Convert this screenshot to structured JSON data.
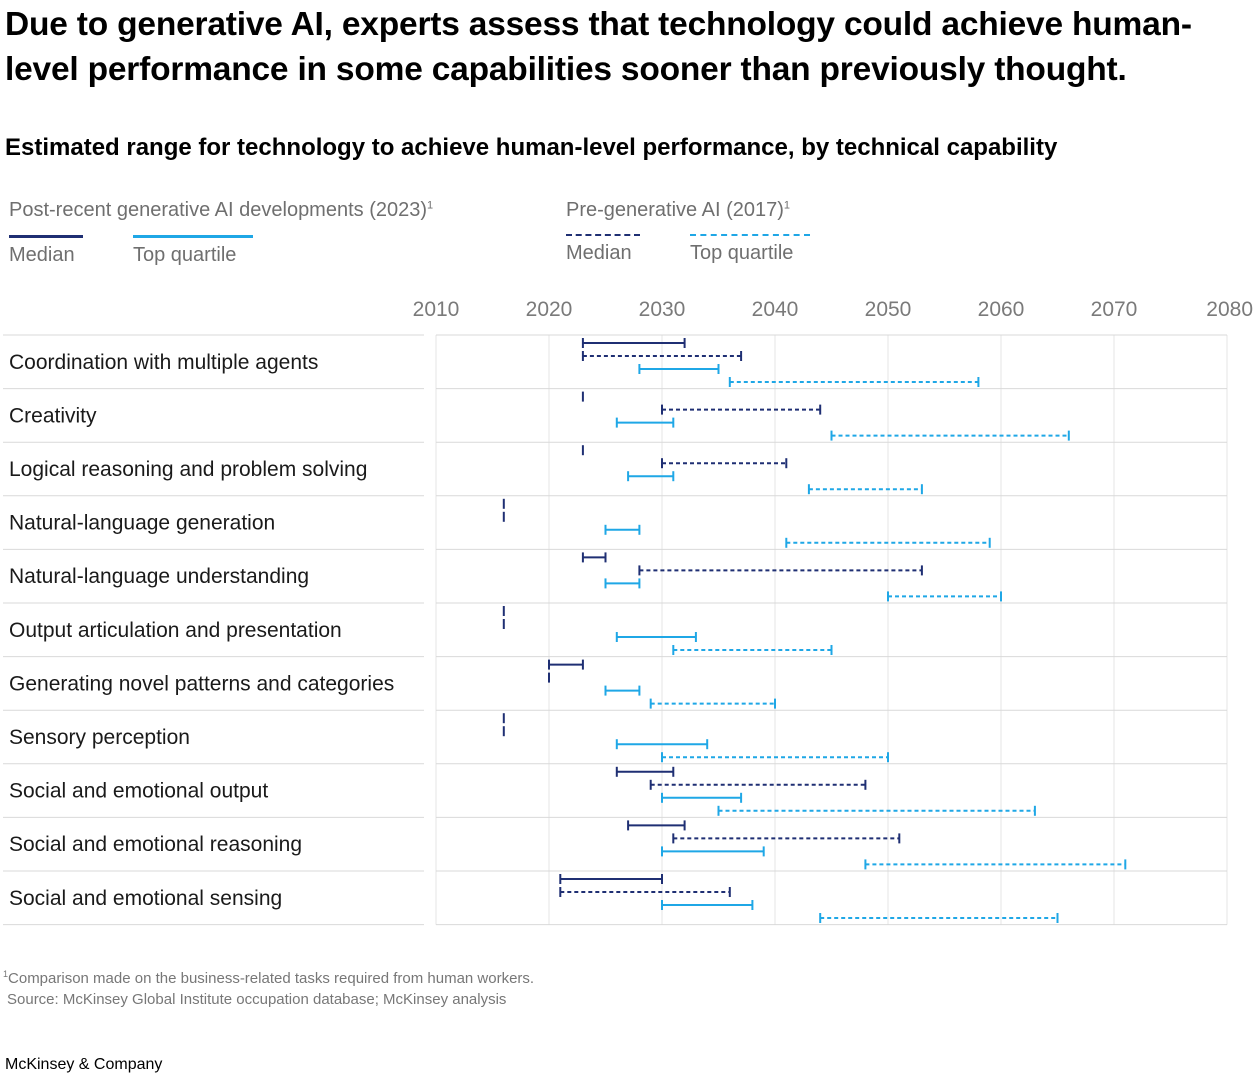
{
  "title": "Due to generative AI, experts assess that technology could achieve human-level performance in some capabilities sooner than previously thought.",
  "subtitle": "Estimated range for technology to achieve human-level performance, by technical capability",
  "legend": {
    "group_post": "Post-recent generative AI developments (2023)",
    "group_pre": "Pre-generative AI (2017)",
    "footnote_marker": "1",
    "median": "Median",
    "top_quartile": "Top quartile"
  },
  "colors": {
    "median": "#1f2f73",
    "top_quartile": "#1fa7e6",
    "gridline": "#e4e4e4",
    "row_divider": "#d9d9d9"
  },
  "footnote": {
    "marker": "1",
    "note": "Comparison made on the business-related tasks required from human workers.",
    "source": "Source: McKinsey Global Institute occupation database; McKinsey analysis"
  },
  "brand": "McKinsey & Company",
  "chart_data": {
    "type": "range",
    "title": "Estimated range for technology to achieve human-level performance, by technical capability",
    "xlim": [
      2010,
      2080
    ],
    "xticks": [
      "2010",
      "2020",
      "2030",
      "2040",
      "2050",
      "2060",
      "2070",
      "2080"
    ],
    "grid": true,
    "legend_position": "top",
    "series": [
      {
        "name": "Median",
        "group": "Post-recent generative AI developments (2023)",
        "style": "solid",
        "color": "#1f2f73"
      },
      {
        "name": "Median",
        "group": "Pre-generative AI (2017)",
        "style": "dashed",
        "color": "#1f2f73"
      },
      {
        "name": "Top quartile",
        "group": "Post-recent generative AI developments (2023)",
        "style": "solid",
        "color": "#1fa7e6"
      },
      {
        "name": "Top quartile",
        "group": "Pre-generative AI (2017)",
        "style": "dashed",
        "color": "#1fa7e6"
      }
    ],
    "categories": [
      {
        "label": "Coordination with multiple agents",
        "ranges": [
          [
            2023,
            2032
          ],
          [
            2023,
            2037
          ],
          [
            2028,
            2035
          ],
          [
            2036,
            2058
          ]
        ]
      },
      {
        "label": "Creativity",
        "ranges": [
          [
            2023,
            2023
          ],
          [
            2030,
            2044
          ],
          [
            2026,
            2031
          ],
          [
            2045,
            2066
          ]
        ]
      },
      {
        "label": "Logical reasoning and problem solving",
        "ranges": [
          [
            2023,
            2023
          ],
          [
            2030,
            2041
          ],
          [
            2027,
            2031
          ],
          [
            2043,
            2053
          ]
        ]
      },
      {
        "label": "Natural-language generation",
        "ranges": [
          [
            2016,
            2016
          ],
          [
            2016,
            2016
          ],
          [
            2025,
            2028
          ],
          [
            2041,
            2059
          ]
        ]
      },
      {
        "label": "Natural-language understanding",
        "ranges": [
          [
            2023,
            2025
          ],
          [
            2028,
            2053
          ],
          [
            2025,
            2028
          ],
          [
            2050,
            2060
          ]
        ]
      },
      {
        "label": "Output articulation and presentation",
        "ranges": [
          [
            2016,
            2016
          ],
          [
            2016,
            2016
          ],
          [
            2026,
            2033
          ],
          [
            2031,
            2045
          ]
        ]
      },
      {
        "label": "Generating novel patterns and categories",
        "ranges": [
          [
            2020,
            2023
          ],
          [
            2020,
            2020
          ],
          [
            2025,
            2028
          ],
          [
            2029,
            2040
          ]
        ]
      },
      {
        "label": "Sensory perception",
        "ranges": [
          [
            2016,
            2016
          ],
          [
            2016,
            2016
          ],
          [
            2026,
            2034
          ],
          [
            2030,
            2050
          ]
        ]
      },
      {
        "label": "Social and emotional output",
        "ranges": [
          [
            2026,
            2031
          ],
          [
            2029,
            2048
          ],
          [
            2030,
            2037
          ],
          [
            2035,
            2063
          ]
        ]
      },
      {
        "label": "Social and emotional reasoning",
        "ranges": [
          [
            2027,
            2032
          ],
          [
            2031,
            2051
          ],
          [
            2030,
            2039
          ],
          [
            2048,
            2071
          ]
        ]
      },
      {
        "label": "Social and emotional sensing",
        "ranges": [
          [
            2021,
            2030
          ],
          [
            2021,
            2036
          ],
          [
            2030,
            2038
          ],
          [
            2044,
            2065
          ]
        ]
      }
    ]
  }
}
